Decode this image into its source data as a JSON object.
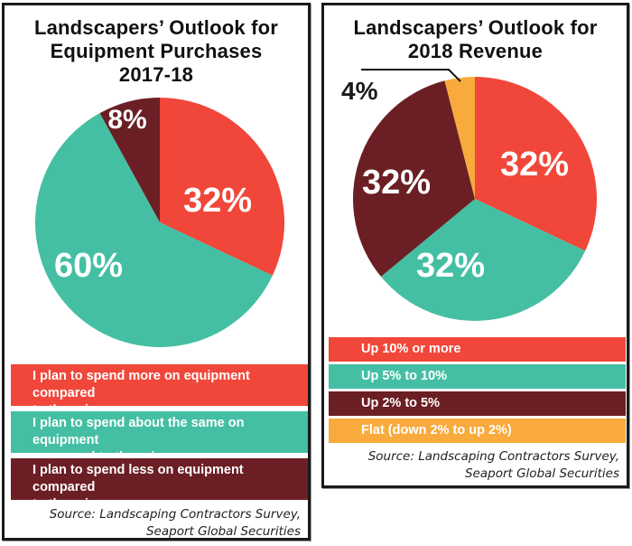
{
  "chart_data": [
    {
      "type": "pie",
      "title": "Landscapers’ Outlook for Equipment Purchases 2017-18",
      "title_lines": [
        "Landscapers’ Outlook for",
        "Equipment Purchases",
        "2017-18"
      ],
      "slices": [
        {
          "label": "I plan to spend more on equipment compared to the prior year.",
          "value": 32,
          "display": "32%",
          "color": "#f0473a"
        },
        {
          "label": "I plan to spend about the same on equipment compared to the prior year.",
          "value": 60,
          "display": "60%",
          "color": "#44bfa3"
        },
        {
          "label": "I plan to spend less on equipment compared to the prior year.",
          "value": 8,
          "display": "8%",
          "color": "#6b1f24"
        }
      ],
      "legend_lines": [
        [
          "I plan to spend more on equipment compared",
          "to the prior year."
        ],
        [
          "I plan to spend about the same on equipment",
          "compared to the prior year."
        ],
        [
          "I plan to spend less on equipment compared",
          "to the prior year."
        ]
      ],
      "legend_position": "bottom",
      "source_lines": [
        "Source: Landscaping Contractors Survey,",
        "Seaport Global Securities"
      ]
    },
    {
      "type": "pie",
      "title": "Landscapers’ Outlook for 2018 Revenue",
      "title_lines": [
        "Landscapers’ Outlook for",
        "2018 Revenue"
      ],
      "slices": [
        {
          "label": "Up 10% or more",
          "value": 32,
          "display": "32%",
          "color": "#f0473a"
        },
        {
          "label": "Up 5% to 10%",
          "value": 32,
          "display": "32%",
          "color": "#44bfa3"
        },
        {
          "label": "Up 2% to 5%",
          "value": 32,
          "display": "32%",
          "color": "#6b1f24"
        },
        {
          "label": "Flat (down 2% to up 2%)",
          "value": 4,
          "display": "4%",
          "color": "#f9aa3c"
        }
      ],
      "legend_position": "bottom",
      "source_lines": [
        "Source: Landscaping Contractors Survey,",
        "Seaport Global Securities"
      ]
    }
  ]
}
